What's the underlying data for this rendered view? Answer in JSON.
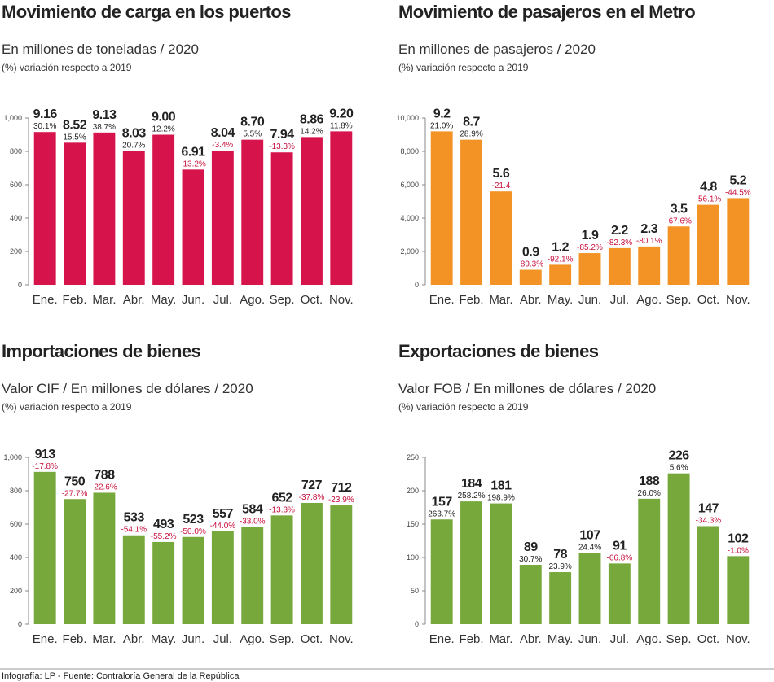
{
  "chart_data": [
    {
      "type": "bar",
      "title": "Movimiento de carga en los puertos",
      "subtitle": "En millones de toneladas / 2020",
      "note": "(%) variación respecto a 2019",
      "categories": [
        "Ene.",
        "Feb.",
        "Mar.",
        "Abr.",
        "May.",
        "Jun.",
        "Jul.",
        "Ago.",
        "Sep.",
        "Oct.",
        "Nov."
      ],
      "values": [
        916,
        852,
        913,
        803,
        900,
        691,
        804,
        870,
        794,
        886,
        920
      ],
      "value_labels": [
        "9.16",
        "8.52",
        "9.13",
        "8.03",
        "9.00",
        "6.91",
        "8.04",
        "8.70",
        "7.94",
        "8.86",
        "9.20"
      ],
      "change_labels": [
        "30.1%",
        "15.5%",
        "38.7%",
        "20.7%",
        "12.2%",
        "-13.2%",
        "-3.4%",
        "5.5%",
        "-13.3%",
        "14.2%",
        "11.8%"
      ],
      "color": "#d6144b",
      "ylim": [
        0,
        1000
      ],
      "yticks": [
        0,
        200,
        400,
        600,
        800,
        {
          "value": 1000,
          "label": "1,000"
        }
      ]
    },
    {
      "type": "bar",
      "title": "Movimiento de pasajeros en el Metro",
      "subtitle": "En millones de pasajeros / 2020",
      "note": "(%) variación respecto a 2019",
      "categories": [
        "Ene.",
        "Feb.",
        "Mar.",
        "Abr.",
        "May.",
        "Jun.",
        "Jul.",
        "Ago.",
        "Sep.",
        "Oct.",
        "Nov."
      ],
      "values": [
        9200,
        8700,
        5600,
        900,
        1200,
        1900,
        2200,
        2300,
        3500,
        4800,
        5200
      ],
      "value_labels": [
        "9.2",
        "8.7",
        "5.6",
        "0.9",
        "1.2",
        "1.9",
        "2.2",
        "2.3",
        "3.5",
        "4.8",
        "5.2"
      ],
      "change_labels": [
        "21.0%",
        "28.9%",
        "-21.4",
        "-89.3%",
        "-92.1%",
        "-85.2%",
        "-82.3%",
        "-80.1%",
        "-67.6%",
        "-56.1%",
        "-44.5%"
      ],
      "color": "#f39325",
      "ylim": [
        0,
        10000
      ],
      "yticks": [
        0,
        {
          "value": 2000,
          "label": "2,000"
        },
        {
          "value": 4000,
          "label": "4,000"
        },
        {
          "value": 6000,
          "label": "6,000"
        },
        {
          "value": 8000,
          "label": "8,000"
        },
        {
          "value": 10000,
          "label": "10,000"
        }
      ]
    },
    {
      "type": "bar",
      "title": "Importaciones de bienes",
      "subtitle": "Valor CIF / En millones de dólares / 2020",
      "note": "(%) variación respecto a 2019",
      "categories": [
        "Ene.",
        "Feb.",
        "Mar.",
        "Abr.",
        "May.",
        "Jun.",
        "Jul.",
        "Ago.",
        "Sep.",
        "Oct.",
        "Nov."
      ],
      "values": [
        913,
        750,
        788,
        533,
        493,
        523,
        557,
        584,
        652,
        727,
        712
      ],
      "change_labels": [
        "-17.8%",
        "-27.7%",
        "-22.6%",
        "-54.1%",
        "-55.2%",
        "-50.0%",
        "-44.0%",
        "-33.0%",
        "-13.3%",
        "-37.8%",
        "-23.9%"
      ],
      "color": "#77a83c",
      "ylim": [
        0,
        1000
      ],
      "yticks": [
        0,
        200,
        400,
        600,
        800,
        {
          "value": 1000,
          "label": "1,000"
        }
      ]
    },
    {
      "type": "bar",
      "title": "Exportaciones de bienes",
      "subtitle": "Valor FOB / En millones de dólares / 2020",
      "note": "(%) variación respecto a 2019",
      "categories": [
        "Ene.",
        "Feb.",
        "Mar.",
        "Abr.",
        "May.",
        "Jun.",
        "Jul.",
        "Ago.",
        "Sep.",
        "Oct.",
        "Nov."
      ],
      "values": [
        157,
        184,
        181,
        89,
        78,
        107,
        91,
        188,
        226,
        147,
        102
      ],
      "change_labels": [
        "263.7%",
        "258.2%",
        "198.9%",
        "30.7%",
        "23.9%",
        "24.4%",
        "-66.8%",
        "26.0%",
        "5.6%",
        "-34.3%",
        "-1.0%"
      ],
      "color": "#77a83c",
      "ylim": [
        0,
        250
      ],
      "yticks": [
        0,
        50,
        100,
        150,
        200,
        250
      ]
    }
  ],
  "footer": "Infografía: LP - Fuente: Contraloría General de la República"
}
